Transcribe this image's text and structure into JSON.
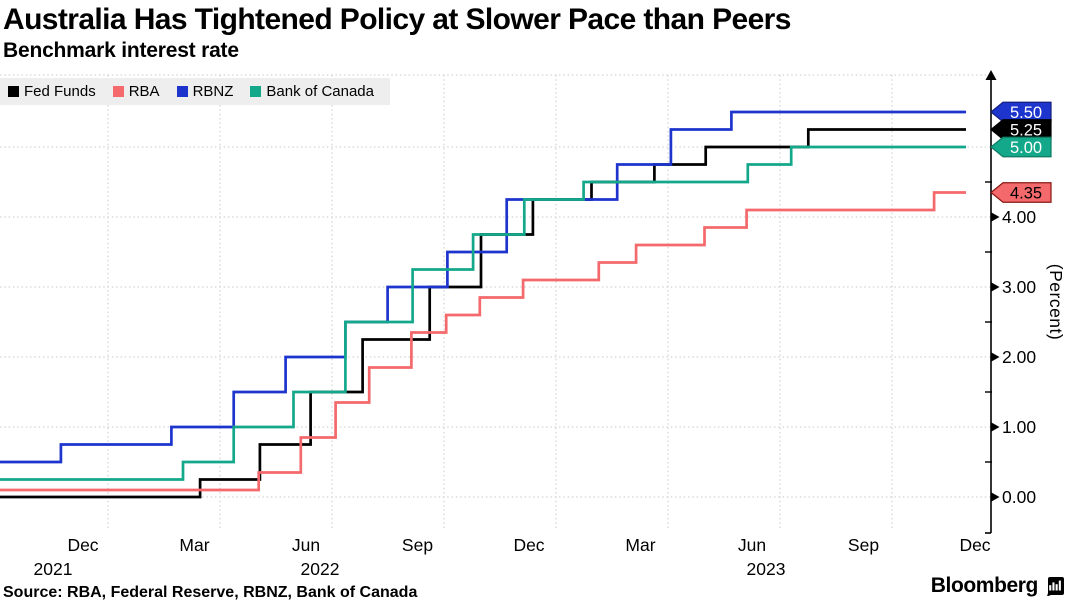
{
  "header": {
    "title": "Australia Has Tightened Policy at Slower Pace than Peers",
    "subtitle": "Benchmark interest rate"
  },
  "footer": {
    "source": "Source: RBA, Federal Reserve, RBNZ, Bank of Canada",
    "brand": "Bloomberg"
  },
  "colors": {
    "fed": "#000000",
    "rba": "#f4696b",
    "rbnz": "#1e35cd",
    "boc": "#14a88b",
    "grid": "#c9c9c9",
    "axis": "#000000",
    "legend_bg": "#eeeeee"
  },
  "chart_data": {
    "type": "line",
    "step": true,
    "title": "Australia Has Tightened Policy at Slower Pace than Peers",
    "subtitle": "Benchmark interest rate",
    "ylabel": "(Percent)",
    "ylim": [
      0,
      5.5
    ],
    "x_range": [
      "2021-10",
      "2023-12"
    ],
    "grid": true,
    "legend_position": "top-left",
    "y_ticks": [
      {
        "value": 0,
        "label": "0.00"
      },
      {
        "value": 1,
        "label": "1.00"
      },
      {
        "value": 2,
        "label": "2.00"
      },
      {
        "value": 3,
        "label": "3.00"
      },
      {
        "value": 4,
        "label": "4.00"
      }
    ],
    "y_minor_ticks": [
      0.5,
      1.5,
      2.5,
      3.5,
      4.5
    ],
    "x_ticks": [
      {
        "label": "Dec",
        "year": "2021"
      },
      {
        "label": "Mar"
      },
      {
        "label": "Jun",
        "year": "2022"
      },
      {
        "label": "Sep"
      },
      {
        "label": "Dec"
      },
      {
        "label": "Mar"
      },
      {
        "label": "Jun",
        "year": "2023"
      },
      {
        "label": "Sep"
      },
      {
        "label": "Dec"
      }
    ],
    "series": [
      {
        "name": "Fed Funds",
        "key": "fed",
        "end_value": 5.25,
        "points": [
          [
            "2021-10-01",
            0.0
          ],
          [
            "2022-03-16",
            0.25
          ],
          [
            "2022-05-04",
            0.75
          ],
          [
            "2022-06-15",
            1.5
          ],
          [
            "2022-07-27",
            2.25
          ],
          [
            "2022-09-21",
            3.0
          ],
          [
            "2022-11-02",
            3.75
          ],
          [
            "2022-12-14",
            4.25
          ],
          [
            "2023-02-01",
            4.5
          ],
          [
            "2023-03-22",
            4.75
          ],
          [
            "2023-05-03",
            5.0
          ],
          [
            "2023-07-26",
            5.25
          ],
          [
            "2023-12-01",
            5.25
          ]
        ]
      },
      {
        "name": "RBA",
        "key": "rba",
        "end_value": 4.35,
        "points": [
          [
            "2021-10-01",
            0.1
          ],
          [
            "2022-05-03",
            0.35
          ],
          [
            "2022-06-07",
            0.85
          ],
          [
            "2022-07-05",
            1.35
          ],
          [
            "2022-08-02",
            1.85
          ],
          [
            "2022-09-06",
            2.35
          ],
          [
            "2022-10-04",
            2.6
          ],
          [
            "2022-11-01",
            2.85
          ],
          [
            "2022-12-06",
            3.1
          ],
          [
            "2023-02-07",
            3.35
          ],
          [
            "2023-03-07",
            3.6
          ],
          [
            "2023-05-02",
            3.85
          ],
          [
            "2023-06-06",
            4.1
          ],
          [
            "2023-11-07",
            4.35
          ],
          [
            "2023-12-01",
            4.35
          ]
        ]
      },
      {
        "name": "RBNZ",
        "key": "rbnz",
        "end_value": 5.5,
        "points": [
          [
            "2021-10-01",
            0.5
          ],
          [
            "2021-11-24",
            0.75
          ],
          [
            "2022-02-23",
            1.0
          ],
          [
            "2022-04-13",
            1.5
          ],
          [
            "2022-05-25",
            2.0
          ],
          [
            "2022-07-13",
            2.5
          ],
          [
            "2022-08-17",
            3.0
          ],
          [
            "2022-10-05",
            3.5
          ],
          [
            "2022-11-23",
            4.25
          ],
          [
            "2023-02-22",
            4.75
          ],
          [
            "2023-04-05",
            5.25
          ],
          [
            "2023-05-24",
            5.5
          ],
          [
            "2023-12-01",
            5.5
          ]
        ]
      },
      {
        "name": "Bank of Canada",
        "key": "boc",
        "end_value": 5.0,
        "points": [
          [
            "2021-10-01",
            0.25
          ],
          [
            "2022-03-02",
            0.5
          ],
          [
            "2022-04-13",
            1.0
          ],
          [
            "2022-06-01",
            1.5
          ],
          [
            "2022-07-13",
            2.5
          ],
          [
            "2022-09-07",
            3.25
          ],
          [
            "2022-10-26",
            3.75
          ],
          [
            "2022-12-07",
            4.25
          ],
          [
            "2023-01-25",
            4.5
          ],
          [
            "2023-06-07",
            4.75
          ],
          [
            "2023-07-12",
            5.0
          ],
          [
            "2023-12-01",
            5.0
          ]
        ]
      }
    ],
    "badges": [
      {
        "label": "5.50",
        "value": 5.5,
        "series": "RBNZ",
        "fill": "#1e35cd",
        "text_color": "#ffffff",
        "border": "#141f7e"
      },
      {
        "label": "5.25",
        "value": 5.25,
        "series": "Fed Funds",
        "fill": "#000000",
        "text_color": "#ffffff",
        "border": "#000000"
      },
      {
        "label": "5.00",
        "value": 5.0,
        "series": "Bank of Canada",
        "fill": "#14a88b",
        "text_color": "#ffffff",
        "border": "#0c7a62"
      },
      {
        "label": "4.35",
        "value": 4.35,
        "series": "RBA",
        "fill": "#f4696b",
        "text_color": "#000000",
        "border": "#8a1712"
      }
    ]
  }
}
